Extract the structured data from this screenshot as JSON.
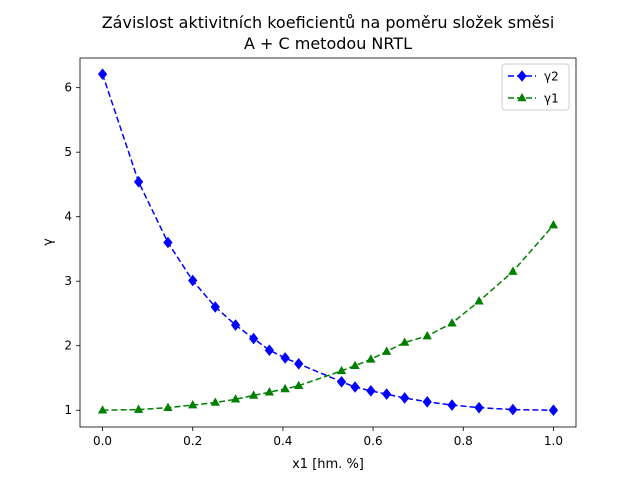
{
  "chart_data": {
    "type": "line",
    "title_line1": "Závislost aktivitních koeficientů na poměru složek směsi",
    "title_line2": "A + C metodou NRTL",
    "xlabel": "x1 [hm. %]",
    "ylabel": "γ",
    "xlim": [
      -0.05,
      1.05
    ],
    "ylim": [
      0.74,
      6.46
    ],
    "xticks": [
      0.0,
      0.2,
      0.4,
      0.6,
      0.8,
      1.0
    ],
    "xtick_labels": [
      "0.0",
      "0.2",
      "0.4",
      "0.6",
      "0.8",
      "1.0"
    ],
    "yticks": [
      1,
      2,
      3,
      4,
      5,
      6
    ],
    "ytick_labels": [
      "1",
      "2",
      "3",
      "4",
      "5",
      "6"
    ],
    "grid": false,
    "legend_position": "top-right",
    "series": [
      {
        "name": "γ2",
        "color": "#0000ff",
        "marker": "diamond",
        "linestyle": "dashed",
        "x": [
          0.0,
          0.08,
          0.145,
          0.2,
          0.25,
          0.295,
          0.335,
          0.37,
          0.405,
          0.435,
          0.53,
          0.56,
          0.595,
          0.63,
          0.67,
          0.72,
          0.775,
          0.835,
          0.91,
          1.0
        ],
        "y": [
          6.21,
          4.54,
          3.6,
          3.01,
          2.6,
          2.32,
          2.11,
          1.93,
          1.81,
          1.72,
          1.44,
          1.36,
          1.3,
          1.25,
          1.19,
          1.13,
          1.08,
          1.04,
          1.01,
          1.0
        ]
      },
      {
        "name": "γ1",
        "color": "#008000",
        "marker": "triangle",
        "linestyle": "dashed",
        "x": [
          0.0,
          0.08,
          0.145,
          0.2,
          0.25,
          0.295,
          0.335,
          0.37,
          0.405,
          0.435,
          0.53,
          0.56,
          0.595,
          0.63,
          0.67,
          0.72,
          0.775,
          0.835,
          0.91,
          1.0
        ],
        "y": [
          1.0,
          1.01,
          1.04,
          1.08,
          1.12,
          1.17,
          1.23,
          1.28,
          1.33,
          1.38,
          1.61,
          1.69,
          1.79,
          1.91,
          2.05,
          2.15,
          2.35,
          2.69,
          3.15,
          3.87
        ]
      }
    ]
  }
}
